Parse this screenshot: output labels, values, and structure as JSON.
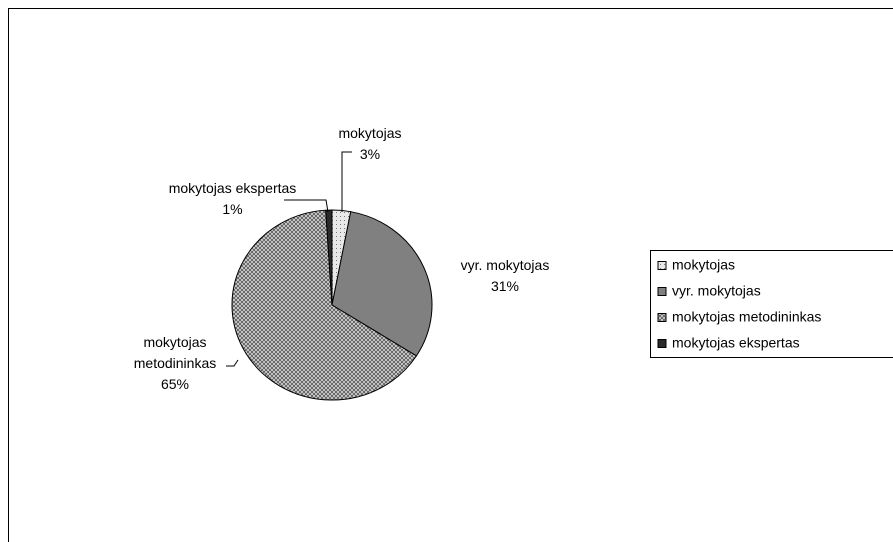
{
  "chart_data": {
    "type": "pie",
    "categories": [
      "mokytojas",
      "vyr. mokytojas",
      "mokytojas metodininkas",
      "mokytojas ekspertas"
    ],
    "values": [
      3,
      31,
      65,
      1
    ],
    "value_labels": [
      "3%",
      "31%",
      "65%",
      "1%"
    ],
    "colors": [
      "#e8e8e8",
      "#808080",
      "#d8d8d8",
      "#2a2a2a"
    ],
    "patterns": [
      "dots",
      "solid",
      "crosshatch",
      "solid"
    ],
    "legend": "right"
  }
}
